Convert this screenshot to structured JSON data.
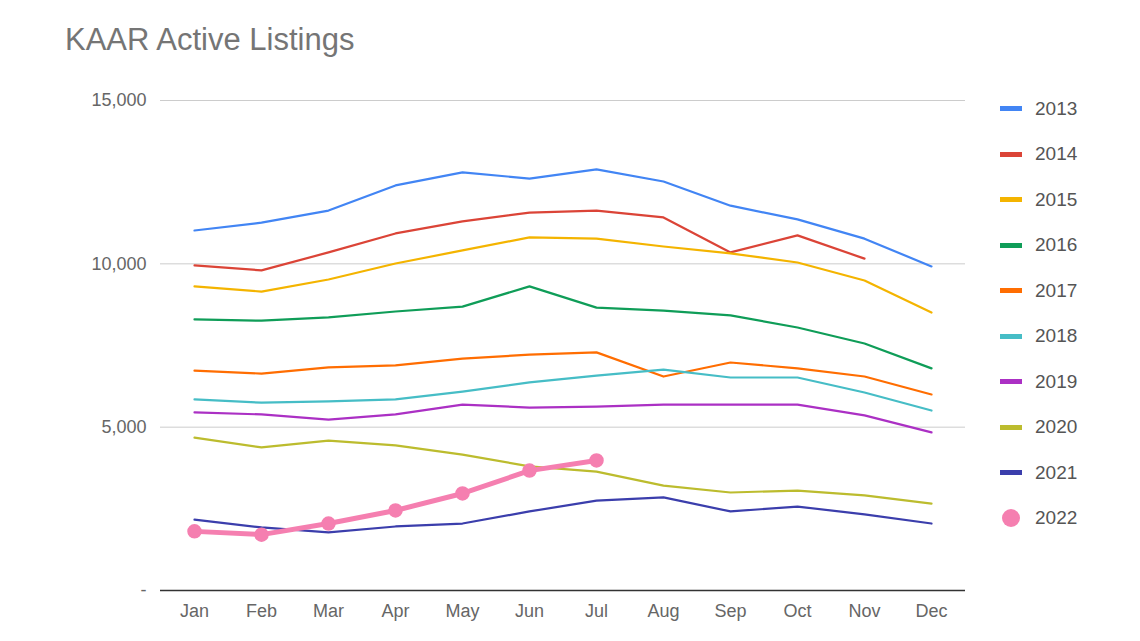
{
  "chart_data": {
    "type": "line",
    "title": "KAAR Active Listings",
    "categories": [
      "Jan",
      "Feb",
      "Mar",
      "Apr",
      "May",
      "Jun",
      "Jul",
      "Aug",
      "Sep",
      "Oct",
      "Nov",
      "Dec"
    ],
    "series": [
      {
        "name": "2013",
        "color": "#4285f4",
        "values": [
          11020,
          11260,
          11630,
          12400,
          12800,
          12610,
          12890,
          12520,
          11780,
          11360,
          10770,
          9920
        ]
      },
      {
        "name": "2014",
        "color": "#db4437",
        "values": [
          9950,
          9800,
          10350,
          10930,
          11300,
          11570,
          11630,
          11420,
          10350,
          10870,
          10160,
          null
        ]
      },
      {
        "name": "2015",
        "color": "#f4b400",
        "values": [
          9310,
          9150,
          9520,
          10010,
          10410,
          10810,
          10770,
          10530,
          10320,
          10040,
          9490,
          8510
        ]
      },
      {
        "name": "2016",
        "color": "#0f9d58",
        "values": [
          8300,
          8260,
          8360,
          8540,
          8690,
          9310,
          8660,
          8570,
          8420,
          8050,
          7560,
          6800
        ]
      },
      {
        "name": "2017",
        "color": "#ff6d01",
        "values": [
          6730,
          6640,
          6830,
          6890,
          7100,
          7220,
          7290,
          6550,
          6980,
          6800,
          6550,
          6000
        ]
      },
      {
        "name": "2018",
        "color": "#46bdc6",
        "values": [
          5850,
          5750,
          5790,
          5850,
          6090,
          6370,
          6580,
          6760,
          6520,
          6520,
          6060,
          5510
        ]
      },
      {
        "name": "2019",
        "color": "#ab30c4",
        "values": [
          5450,
          5390,
          5230,
          5390,
          5690,
          5600,
          5630,
          5690,
          5690,
          5690,
          5360,
          4840
        ]
      },
      {
        "name": "2020",
        "color": "#bcbc2e",
        "values": [
          4680,
          4380,
          4590,
          4440,
          4160,
          3800,
          3640,
          3210,
          3000,
          3060,
          2910,
          2660
        ]
      },
      {
        "name": "2021",
        "color": "#3b3eac",
        "values": [
          2170,
          1930,
          1780,
          1960,
          2050,
          2420,
          2750,
          2850,
          2420,
          2570,
          2330,
          2050
        ]
      },
      {
        "name": "2022",
        "color": "#f57fb0",
        "marker": "circle",
        "values": [
          1810,
          1710,
          2050,
          2450,
          2970,
          3670,
          3980,
          null,
          null,
          null,
          null,
          null
        ]
      }
    ],
    "ylim": [
      0,
      15000
    ],
    "yticks": [
      {
        "value": 0,
        "label": "-"
      },
      {
        "value": 5000,
        "label": "5,000"
      },
      {
        "value": 10000,
        "label": "10,000"
      },
      {
        "value": 15000,
        "label": "15,000"
      }
    ],
    "grid": true,
    "legend": "right"
  }
}
